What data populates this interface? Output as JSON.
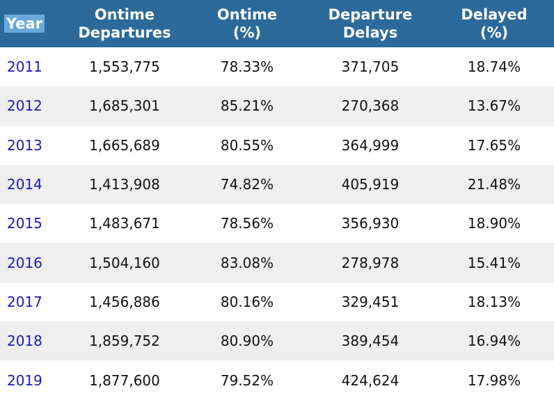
{
  "table": {
    "headers": {
      "year": "Year",
      "ontime_departures": [
        "Ontime",
        "Departures"
      ],
      "ontime_pct": [
        "Ontime",
        "(%)"
      ],
      "departure_delays": [
        "Departure",
        "Delays"
      ],
      "delayed_pct": [
        "Delayed",
        "(%)"
      ]
    },
    "rows": [
      {
        "year": "2011",
        "ontime": "1,553,775",
        "ontime_pct": "78.33%",
        "delays": "371,705",
        "delayed_pct": "18.74%"
      },
      {
        "year": "2012",
        "ontime": "1,685,301",
        "ontime_pct": "85.21%",
        "delays": "270,368",
        "delayed_pct": "13.67%"
      },
      {
        "year": "2013",
        "ontime": "1,665,689",
        "ontime_pct": "80.55%",
        "delays": "364,999",
        "delayed_pct": "17.65%"
      },
      {
        "year": "2014",
        "ontime": "1,413,908",
        "ontime_pct": "74.82%",
        "delays": "405,919",
        "delayed_pct": "21.48%"
      },
      {
        "year": "2015",
        "ontime": "1,483,671",
        "ontime_pct": "78.56%",
        "delays": "356,930",
        "delayed_pct": "18.90%"
      },
      {
        "year": "2016",
        "ontime": "1,504,160",
        "ontime_pct": "83.08%",
        "delays": "278,978",
        "delayed_pct": "15.41%"
      },
      {
        "year": "2017",
        "ontime": "1,456,886",
        "ontime_pct": "80.16%",
        "delays": "329,451",
        "delayed_pct": "18.13%"
      },
      {
        "year": "2018",
        "ontime": "1,859,752",
        "ontime_pct": "80.90%",
        "delays": "389,454",
        "delayed_pct": "16.94%"
      },
      {
        "year": "2019",
        "ontime": "1,877,600",
        "ontime_pct": "79.52%",
        "delays": "424,624",
        "delayed_pct": "17.98%"
      }
    ]
  },
  "colors": {
    "header_bg": "#2b6a9a",
    "year_header_highlight": "#6aa7da",
    "year_link": "#1a1ab8",
    "stripe": "#efefef"
  }
}
